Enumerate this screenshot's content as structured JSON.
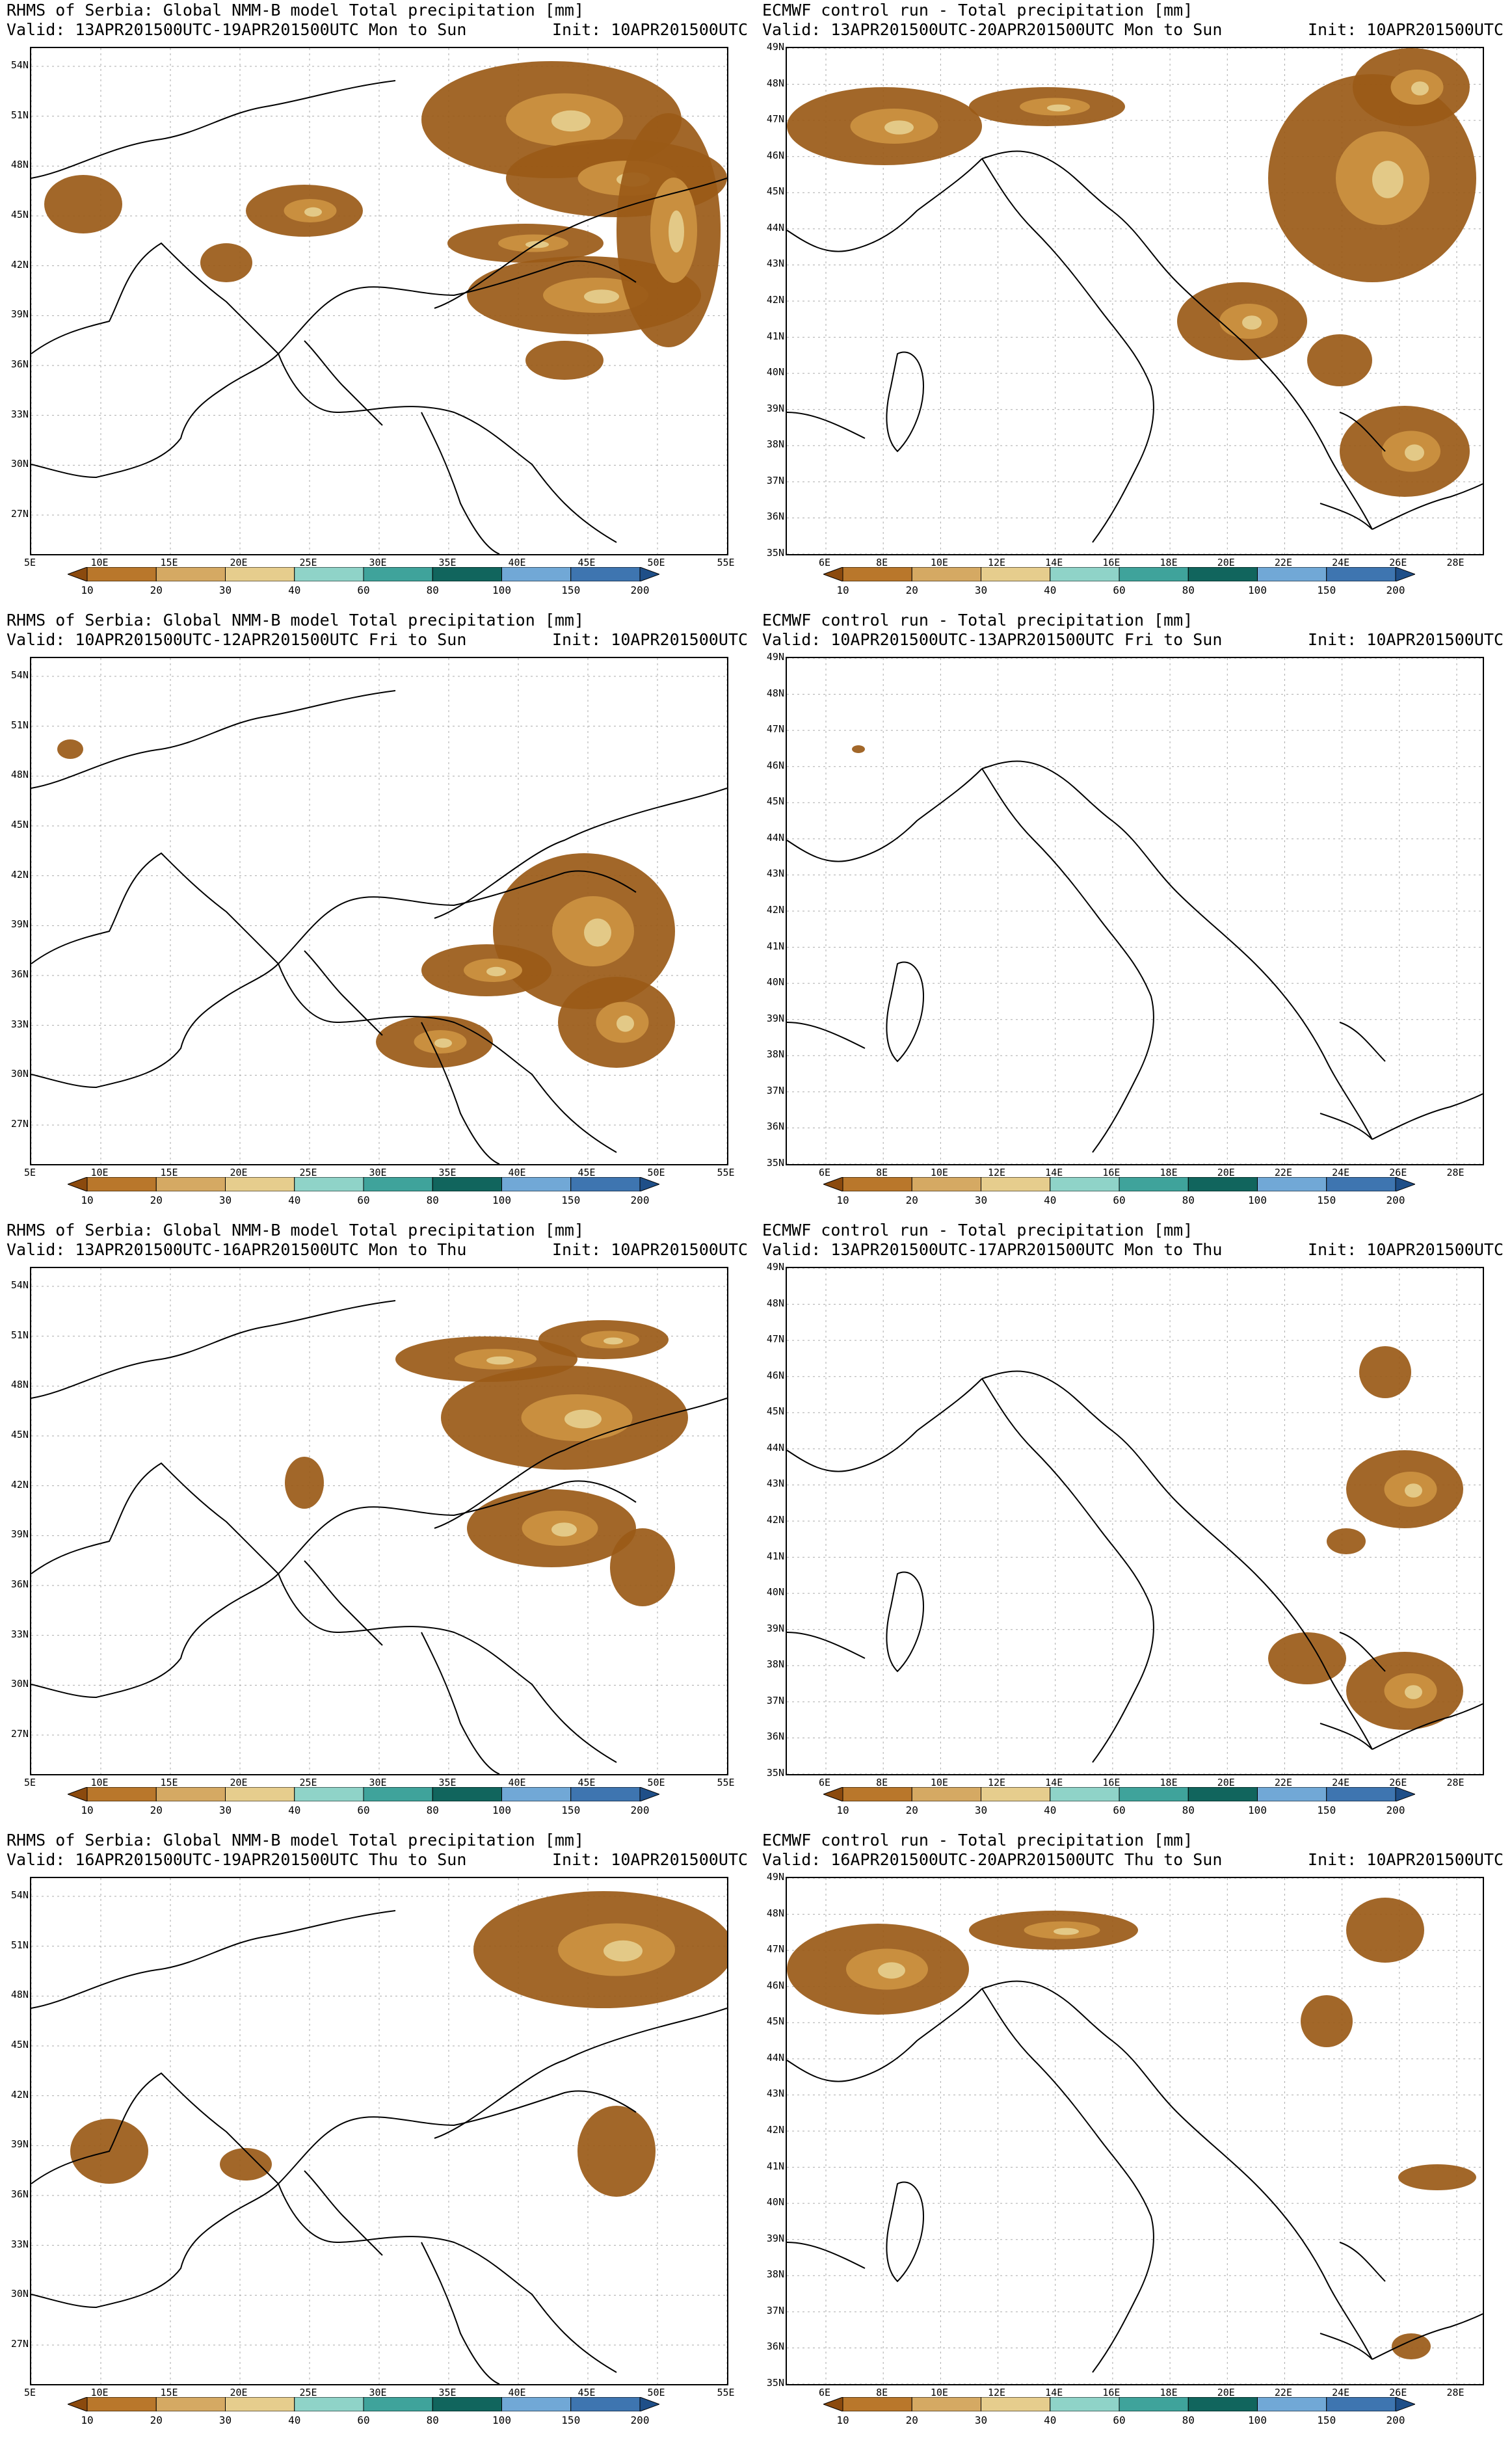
{
  "panels": [
    {
      "line1": "RHMS of Serbia: Global NMM-B model Total precipitation [mm]",
      "line2": "Valid: 13APR201500UTC-19APR201500UTC Mon to Sun",
      "init": "Init: 10APR201500UTC",
      "model": "nmmb",
      "intensity": "high"
    },
    {
      "line1": "ECMWF control run - Total precipitation [mm]",
      "line2": "Valid: 13APR201500UTC-20APR201500UTC Mon to Sun",
      "init": "Init: 10APR201500UTC",
      "model": "ecmwf",
      "intensity": "high"
    },
    {
      "line1": "RHMS of Serbia: Global NMM-B model Total precipitation [mm]",
      "line2": "Valid: 10APR201500UTC-12APR201500UTC Fri to Sun",
      "init": "Init: 10APR201500UTC",
      "model": "nmmb",
      "intensity": "east"
    },
    {
      "line1": "ECMWF control run - Total precipitation [mm]",
      "line2": "Valid: 10APR201500UTC-13APR201500UTC Fri to Sun",
      "init": "Init: 10APR201500UTC",
      "model": "ecmwf",
      "intensity": "none"
    },
    {
      "line1": "RHMS of Serbia: Global NMM-B model Total precipitation [mm]",
      "line2": "Valid: 13APR201500UTC-16APR201500UTC Mon to Thu",
      "init": "Init: 10APR201500UTC",
      "model": "nmmb",
      "intensity": "mid"
    },
    {
      "line1": "ECMWF control run - Total precipitation [mm]",
      "line2": "Valid: 13APR201500UTC-17APR201500UTC Mon to Thu",
      "init": "Init: 10APR201500UTC",
      "model": "ecmwf",
      "intensity": "mid"
    },
    {
      "line1": "RHMS of Serbia: Global NMM-B model Total precipitation [mm]",
      "line2": "Valid: 16APR201500UTC-19APR201500UTC Thu to Sun",
      "init": "Init: 10APR201500UTC",
      "model": "nmmb",
      "intensity": "north"
    },
    {
      "line1": "ECMWF control run - Total precipitation [mm]",
      "line2": "Valid: 16APR201500UTC-20APR201500UTC Thu to Sun",
      "init": "Init: 10APR201500UTC",
      "model": "ecmwf",
      "intensity": "alps"
    }
  ],
  "axes": {
    "nmmb": {
      "lat": [
        "54N",
        "51N",
        "48N",
        "45N",
        "42N",
        "39N",
        "36N",
        "33N",
        "30N",
        "27N"
      ],
      "lon": [
        "5E",
        "10E",
        "15E",
        "20E",
        "25E",
        "30E",
        "35E",
        "40E",
        "45E",
        "50E",
        "55E"
      ]
    },
    "ecmwf": {
      "lat": [
        "49N",
        "48N",
        "47N",
        "46N",
        "45N",
        "44N",
        "43N",
        "42N",
        "41N",
        "40N",
        "39N",
        "38N",
        "37N",
        "36N",
        "35N"
      ],
      "lon": [
        "6E",
        "8E",
        "10E",
        "12E",
        "14E",
        "16E",
        "18E",
        "20E",
        "22E",
        "24E",
        "26E",
        "28E"
      ]
    }
  },
  "colorbar": {
    "labels": [
      "10",
      "20",
      "30",
      "40",
      "60",
      "80",
      "100",
      "150",
      "200"
    ],
    "colors": [
      "#8b4a0e",
      "#b9772b",
      "#d5a963",
      "#e6cd8d",
      "#8fd3c8",
      "#3fa39b",
      "#11655d",
      "#71a8d6",
      "#3e75b0",
      "#1f4f88"
    ]
  }
}
